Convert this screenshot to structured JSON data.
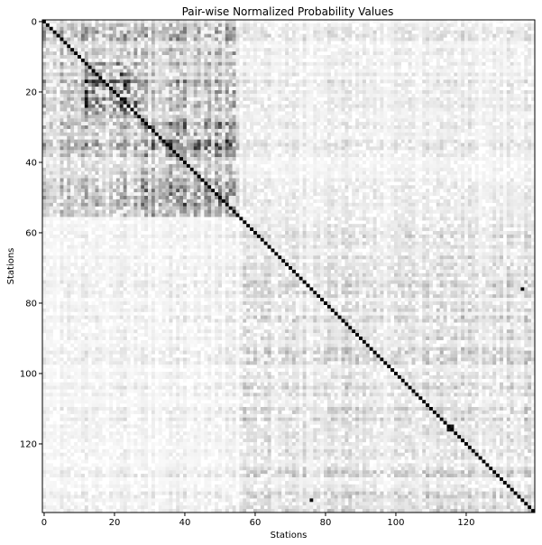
{
  "chart_data": {
    "type": "heatmap",
    "title": "Pair-wise Normalized Probability Values",
    "xlabel": "Stations",
    "ylabel": "Stations",
    "n": 140,
    "colormap": "Greys",
    "value_range": [
      0,
      1
    ],
    "xticks": [
      0,
      20,
      40,
      60,
      80,
      100,
      120
    ],
    "yticks": [
      0,
      20,
      40,
      60,
      80,
      100,
      120
    ],
    "xtick_labels": [
      "0",
      "20",
      "40",
      "60",
      "80",
      "100",
      "120"
    ],
    "ytick_labels": [
      "0",
      "20",
      "40",
      "60",
      "80",
      "100",
      "120"
    ],
    "clusters": [
      {
        "range": [
          0,
          55
        ],
        "intensity": 0.28
      },
      {
        "range": [
          12,
          27
        ],
        "intensity": 0.55
      },
      {
        "range": [
          28,
          55
        ],
        "intensity": 0.42
      },
      {
        "range": [
          56,
          139
        ],
        "intensity": 0.14
      }
    ],
    "diagonal_value": 1.0,
    "hotspots": [
      {
        "row": 76,
        "col": 136,
        "value": 0.95
      },
      {
        "row": 136,
        "col": 76,
        "value": 0.95
      },
      {
        "row": 115,
        "col": 115,
        "value": 1.0
      },
      {
        "row": 115,
        "col": 116,
        "value": 0.9
      },
      {
        "row": 116,
        "col": 115,
        "value": 0.9
      }
    ]
  }
}
